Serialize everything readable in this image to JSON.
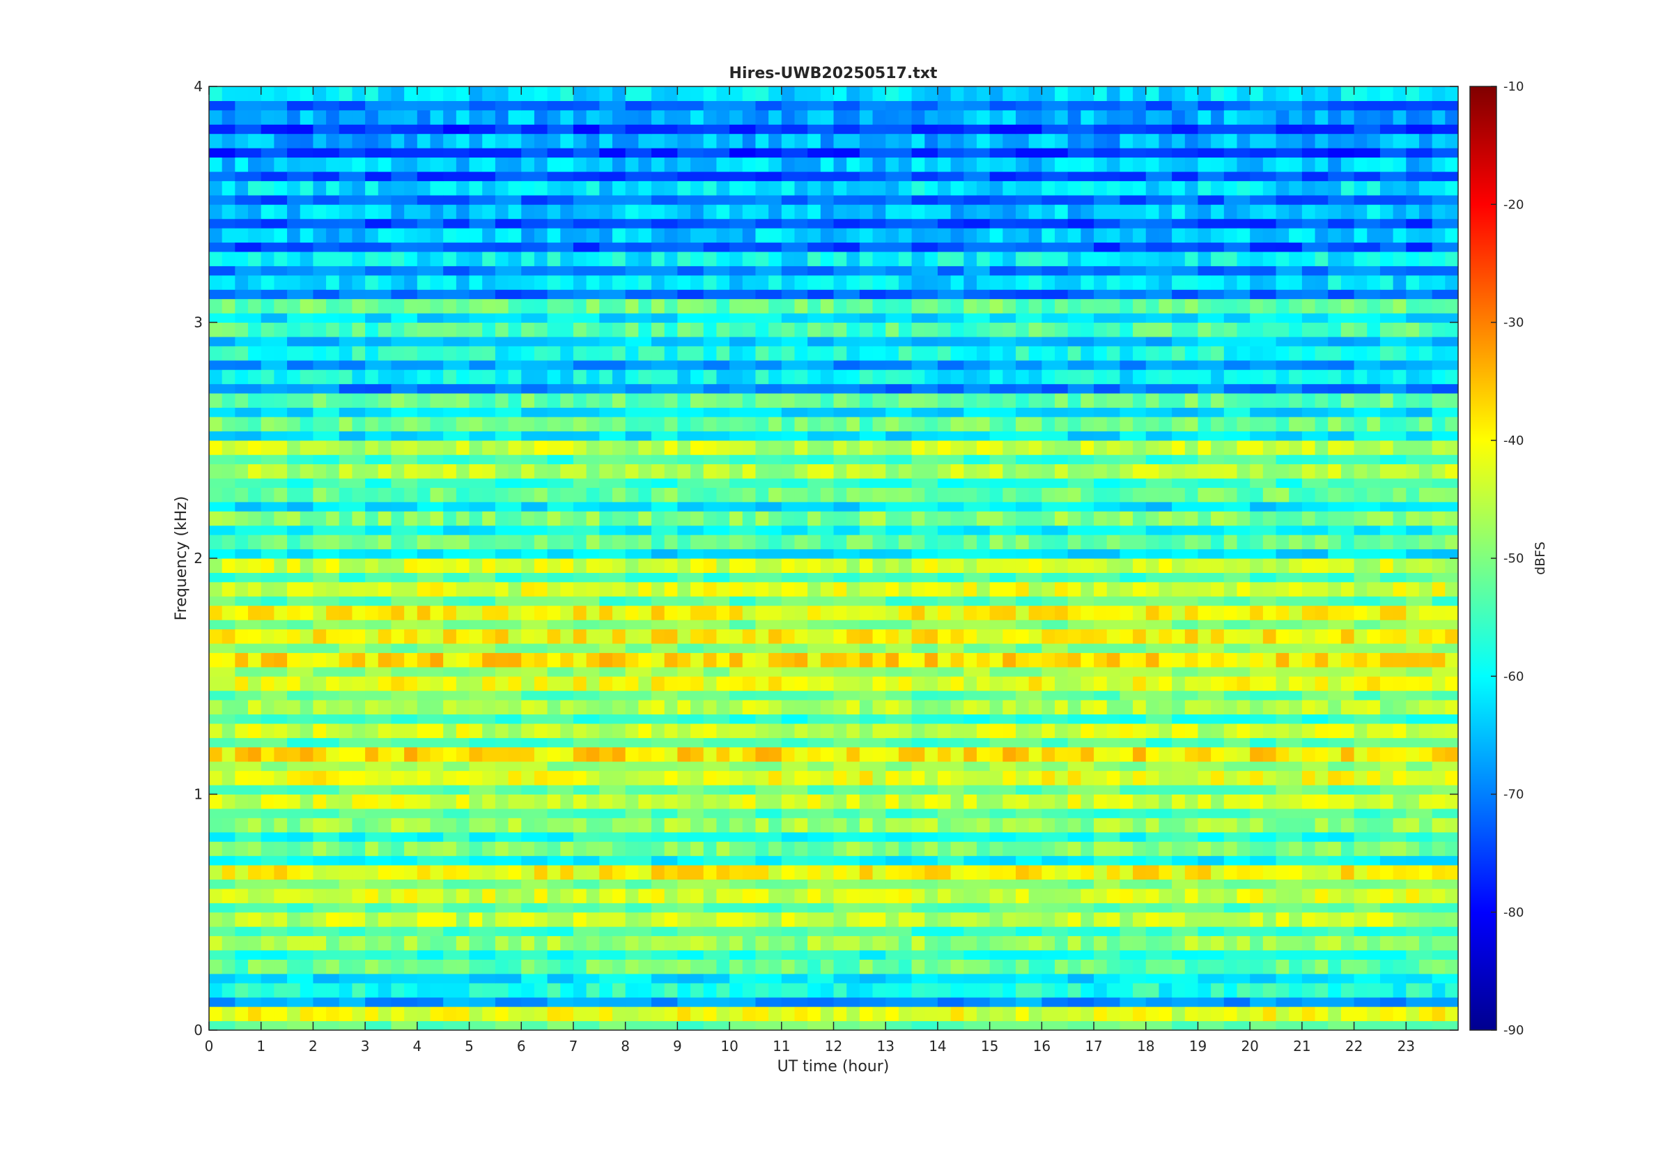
{
  "chart_data": {
    "type": "heatmap",
    "title": "Hires-UWB20250517.txt",
    "xlabel": "UT time (hour)",
    "ylabel": "Frequency (kHz)",
    "xlim": [
      0,
      24
    ],
    "ylim": [
      0,
      4
    ],
    "x_ticks": [
      "0",
      "1",
      "2",
      "3",
      "4",
      "5",
      "6",
      "7",
      "8",
      "9",
      "10",
      "11",
      "12",
      "13",
      "14",
      "15",
      "16",
      "17",
      "18",
      "19",
      "20",
      "21",
      "22",
      "23"
    ],
    "y_ticks": [
      "0",
      "1",
      "2",
      "3",
      "4"
    ],
    "colorbar": {
      "label": "dBFS",
      "clim": [
        -90,
        -10
      ],
      "ticks": [
        "-10",
        "-20",
        "-30",
        "-40",
        "-50",
        "-60",
        "-70",
        "-80",
        "-90"
      ],
      "colormap": "jet"
    },
    "grid": false,
    "background_level_dbfs": -62,
    "bands": [
      {
        "freq_khz": 0.05,
        "level_dbfs": -42
      },
      {
        "freq_khz": 0.15,
        "level_dbfs": -58
      },
      {
        "freq_khz": 0.25,
        "level_dbfs": -52
      },
      {
        "freq_khz": 0.35,
        "level_dbfs": -48
      },
      {
        "freq_khz": 0.45,
        "level_dbfs": -45
      },
      {
        "freq_khz": 0.55,
        "level_dbfs": -43
      },
      {
        "freq_khz": 0.65,
        "level_dbfs": -40
      },
      {
        "freq_khz": 0.75,
        "level_dbfs": -50
      },
      {
        "freq_khz": 0.85,
        "level_dbfs": -48
      },
      {
        "freq_khz": 0.95,
        "level_dbfs": -44
      },
      {
        "freq_khz": 1.05,
        "level_dbfs": -42
      },
      {
        "freq_khz": 1.15,
        "level_dbfs": -38
      },
      {
        "freq_khz": 1.25,
        "level_dbfs": -44
      },
      {
        "freq_khz": 1.35,
        "level_dbfs": -46
      },
      {
        "freq_khz": 1.45,
        "level_dbfs": -42
      },
      {
        "freq_khz": 1.55,
        "level_dbfs": -38
      },
      {
        "freq_khz": 1.65,
        "level_dbfs": -40
      },
      {
        "freq_khz": 1.75,
        "level_dbfs": -40
      },
      {
        "freq_khz": 1.85,
        "level_dbfs": -43
      },
      {
        "freq_khz": 1.95,
        "level_dbfs": -44
      },
      {
        "freq_khz": 2.05,
        "level_dbfs": -52
      },
      {
        "freq_khz": 2.15,
        "level_dbfs": -50
      },
      {
        "freq_khz": 2.25,
        "level_dbfs": -52
      },
      {
        "freq_khz": 2.35,
        "level_dbfs": -46
      },
      {
        "freq_khz": 2.45,
        "level_dbfs": -45
      },
      {
        "freq_khz": 2.55,
        "level_dbfs": -52
      },
      {
        "freq_khz": 2.65,
        "level_dbfs": -52
      },
      {
        "freq_khz": 2.75,
        "level_dbfs": -60
      },
      {
        "freq_khz": 2.85,
        "level_dbfs": -58
      },
      {
        "freq_khz": 2.95,
        "level_dbfs": -54
      },
      {
        "freq_khz": 3.05,
        "level_dbfs": -52
      },
      {
        "freq_khz": 3.15,
        "level_dbfs": -62
      },
      {
        "freq_khz": 3.25,
        "level_dbfs": -60
      },
      {
        "freq_khz": 3.35,
        "level_dbfs": -64
      },
      {
        "freq_khz": 3.45,
        "level_dbfs": -64
      },
      {
        "freq_khz": 3.55,
        "level_dbfs": -62
      },
      {
        "freq_khz": 3.65,
        "level_dbfs": -64
      },
      {
        "freq_khz": 3.75,
        "level_dbfs": -66
      },
      {
        "freq_khz": 3.85,
        "level_dbfs": -66
      },
      {
        "freq_khz": 3.95,
        "level_dbfs": -62
      }
    ]
  }
}
